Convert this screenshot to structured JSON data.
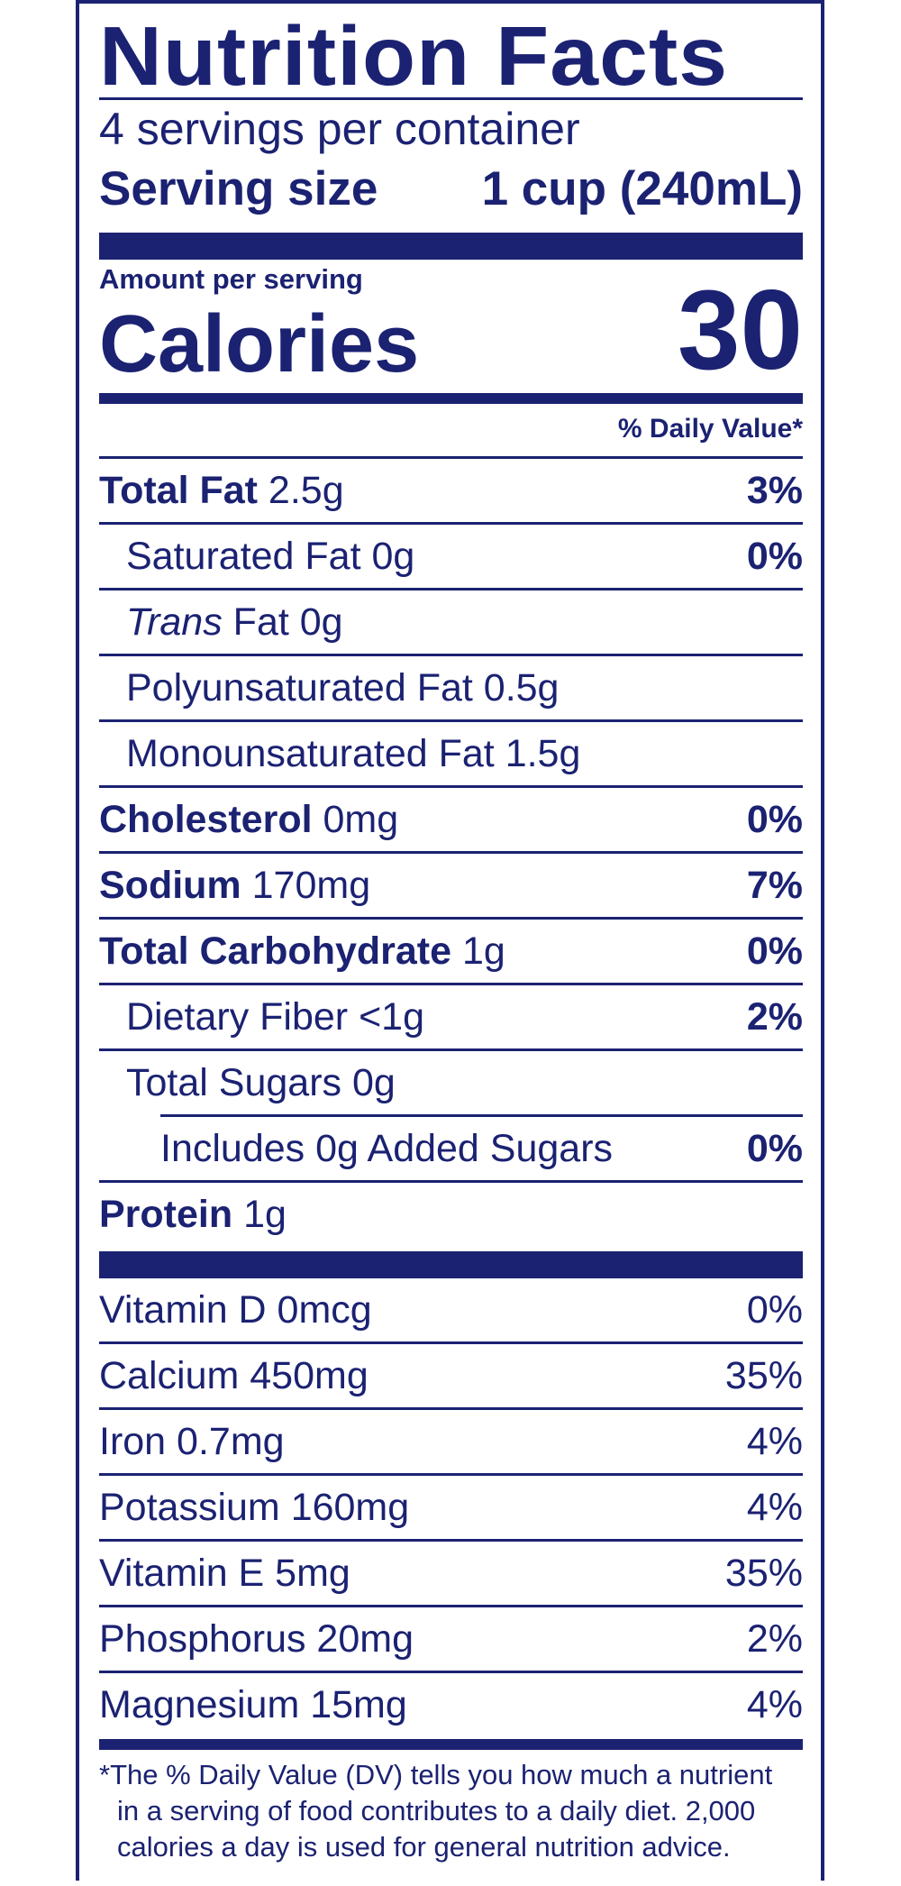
{
  "title": "Nutrition Facts",
  "servings_per_container": "4 servings per container",
  "serving_size": {
    "label": "Serving size",
    "value": "1 cup (240mL)"
  },
  "amount_per_serving": "Amount per serving",
  "calories": {
    "label": "Calories",
    "value": "30"
  },
  "daily_value_header": "% Daily Value*",
  "nutrients": [
    {
      "name": "Total Fat",
      "amount": "2.5g",
      "dv": "3%"
    },
    {
      "name": "Saturated Fat 0g",
      "dv": "0%"
    },
    {
      "name_italic": "Trans",
      "name_rest": " Fat 0g"
    },
    {
      "name": "Polyunsaturated Fat 0.5g"
    },
    {
      "name": "Monounsaturated Fat 1.5g"
    },
    {
      "name": "Cholesterol",
      "amount": "0mg",
      "dv": "0%"
    },
    {
      "name": "Sodium",
      "amount": "170mg",
      "dv": "7%"
    },
    {
      "name": "Total Carbohydrate",
      "amount": "1g",
      "dv": "0%"
    },
    {
      "name": "Dietary Fiber <1g",
      "dv": "2%"
    },
    {
      "name": "Total Sugars 0g"
    },
    {
      "name": "Includes 0g Added Sugars",
      "dv": "0%"
    },
    {
      "name": "Protein",
      "amount": "1g"
    }
  ],
  "vitamins": [
    {
      "name": "Vitamin D 0mcg",
      "dv": "0%"
    },
    {
      "name": "Calcium 450mg",
      "dv": "35%"
    },
    {
      "name": "Iron 0.7mg",
      "dv": "4%"
    },
    {
      "name": "Potassium 160mg",
      "dv": "4%"
    },
    {
      "name": "Vitamin E 5mg",
      "dv": "35%"
    },
    {
      "name": "Phosphorus 20mg",
      "dv": "2%"
    },
    {
      "name": "Magnesium 15mg",
      "dv": "4%"
    }
  ],
  "footnote": [
    "*The % Daily Value (DV) tells you how much a nutrient",
    "in a serving of food contributes to a daily diet. 2,000",
    "calories a day is used for general nutrition advice."
  ],
  "colors": {
    "ink": "#1b2272",
    "background": "#ffffff"
  }
}
